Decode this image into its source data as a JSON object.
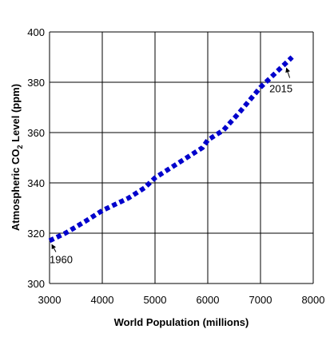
{
  "chart_data": {
    "type": "line",
    "x_label": "World Population (millions)",
    "y_label": [
      "Atmospheric CO",
      "2",
      " Level (ppm)"
    ],
    "x": [
      3000,
      3300,
      3700,
      4000,
      4500,
      4800,
      5000,
      5300,
      5600,
      5900,
      6000,
      6300,
      6600,
      7000,
      7300,
      7600
    ],
    "series": [
      {
        "color": "#0000cc",
        "values": [
          317,
          320,
          325,
          329,
          334,
          338,
          342,
          346,
          350,
          354,
          357,
          361,
          368,
          378,
          384,
          390
        ]
      }
    ],
    "xlim": [
      3000,
      8000
    ],
    "xticks": [
      3000,
      4000,
      5000,
      6000,
      7000,
      8000
    ],
    "ylim": [
      300,
      400
    ],
    "yticks": [
      300,
      320,
      340,
      360,
      380,
      400
    ],
    "grid": true,
    "annotations": [
      "1960",
      "2015"
    ],
    "annotation_color": "#e07b24"
  }
}
